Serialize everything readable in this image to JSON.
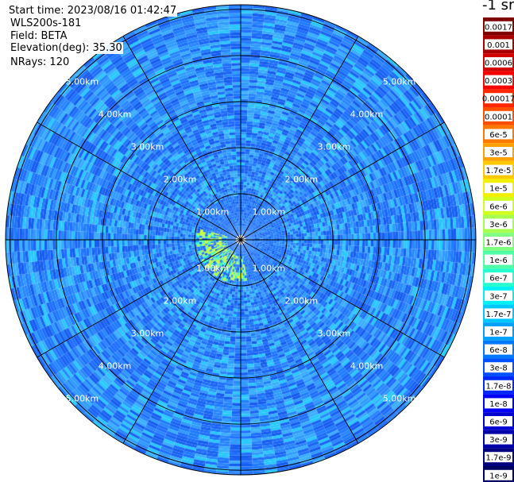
{
  "info": {
    "start_time": "Start time: 2023/08/16 01:42:47",
    "site": "WLS200s-181",
    "field": "Field: BETA",
    "elevation": "Elevation(deg): 35.30",
    "nrays": "NRays: 120"
  },
  "legend": {
    "title": "-1 sr",
    "entries": [
      {
        "label": "0.0017",
        "color": "#800000"
      },
      {
        "label": "0.001",
        "color": "#a80000"
      },
      {
        "label": "0.0006",
        "color": "#d00000"
      },
      {
        "label": "0.0003",
        "color": "#f80000"
      },
      {
        "label": "0.00017",
        "color": "#ff2800"
      },
      {
        "label": "0.0001",
        "color": "#ff5000"
      },
      {
        "label": "6e-5",
        "color": "#ff7800"
      },
      {
        "label": "3e-5",
        "color": "#ffa000"
      },
      {
        "label": "1.7e-5",
        "color": "#ffc800"
      },
      {
        "label": "1e-5",
        "color": "#f0f000"
      },
      {
        "label": "6e-6",
        "color": "#d0ff20"
      },
      {
        "label": "3e-6",
        "color": "#a8ff50"
      },
      {
        "label": "1.7e-6",
        "color": "#80ff80"
      },
      {
        "label": "1e-6",
        "color": "#50ffa8"
      },
      {
        "label": "6e-7",
        "color": "#28ffd0"
      },
      {
        "label": "3e-7",
        "color": "#00f0f8"
      },
      {
        "label": "1.7e-7",
        "color": "#00c8ff"
      },
      {
        "label": "1e-7",
        "color": "#00a0ff"
      },
      {
        "label": "6e-8",
        "color": "#0078ff"
      },
      {
        "label": "3e-8",
        "color": "#0050ff"
      },
      {
        "label": "1.7e-8",
        "color": "#0028ff"
      },
      {
        "label": "1e-8",
        "color": "#0000f8"
      },
      {
        "label": "6e-9",
        "color": "#0000d0"
      },
      {
        "label": "3e-9",
        "color": "#0000a8"
      },
      {
        "label": "1.7e-9",
        "color": "#000080"
      },
      {
        "label": "1e-9",
        "color": "#000060"
      }
    ]
  },
  "chart_data": {
    "type": "heatmap",
    "projection": "polar PPI scan",
    "field": "BETA",
    "unit": "-1 sr",
    "elevation_deg": 35.3,
    "n_rays": 120,
    "range_ring_labels": [
      "1.00km",
      "2.00km",
      "3.00km",
      "4.00km",
      "5.00km"
    ],
    "range_rings_km": [
      1,
      2,
      3,
      4,
      5
    ],
    "max_range_km": 5.1,
    "spokes_deg": [
      0,
      30,
      60,
      90,
      120,
      150,
      180,
      210,
      240,
      270,
      300,
      330
    ],
    "dominant_value": "3e-8 to 1.7e-7",
    "near_field_enhancement": {
      "direction": "west / south-west of radar",
      "range_km": [
        0.1,
        1.0
      ],
      "values": "1.7e-7 to 6e-6"
    },
    "ring_label_rings_km": [
      1,
      2,
      3,
      4,
      5
    ],
    "ring_label_sides": [
      "upper-left",
      "upper-right",
      "lower-left",
      "lower-right"
    ],
    "grid": true,
    "legend_placement": "right"
  }
}
